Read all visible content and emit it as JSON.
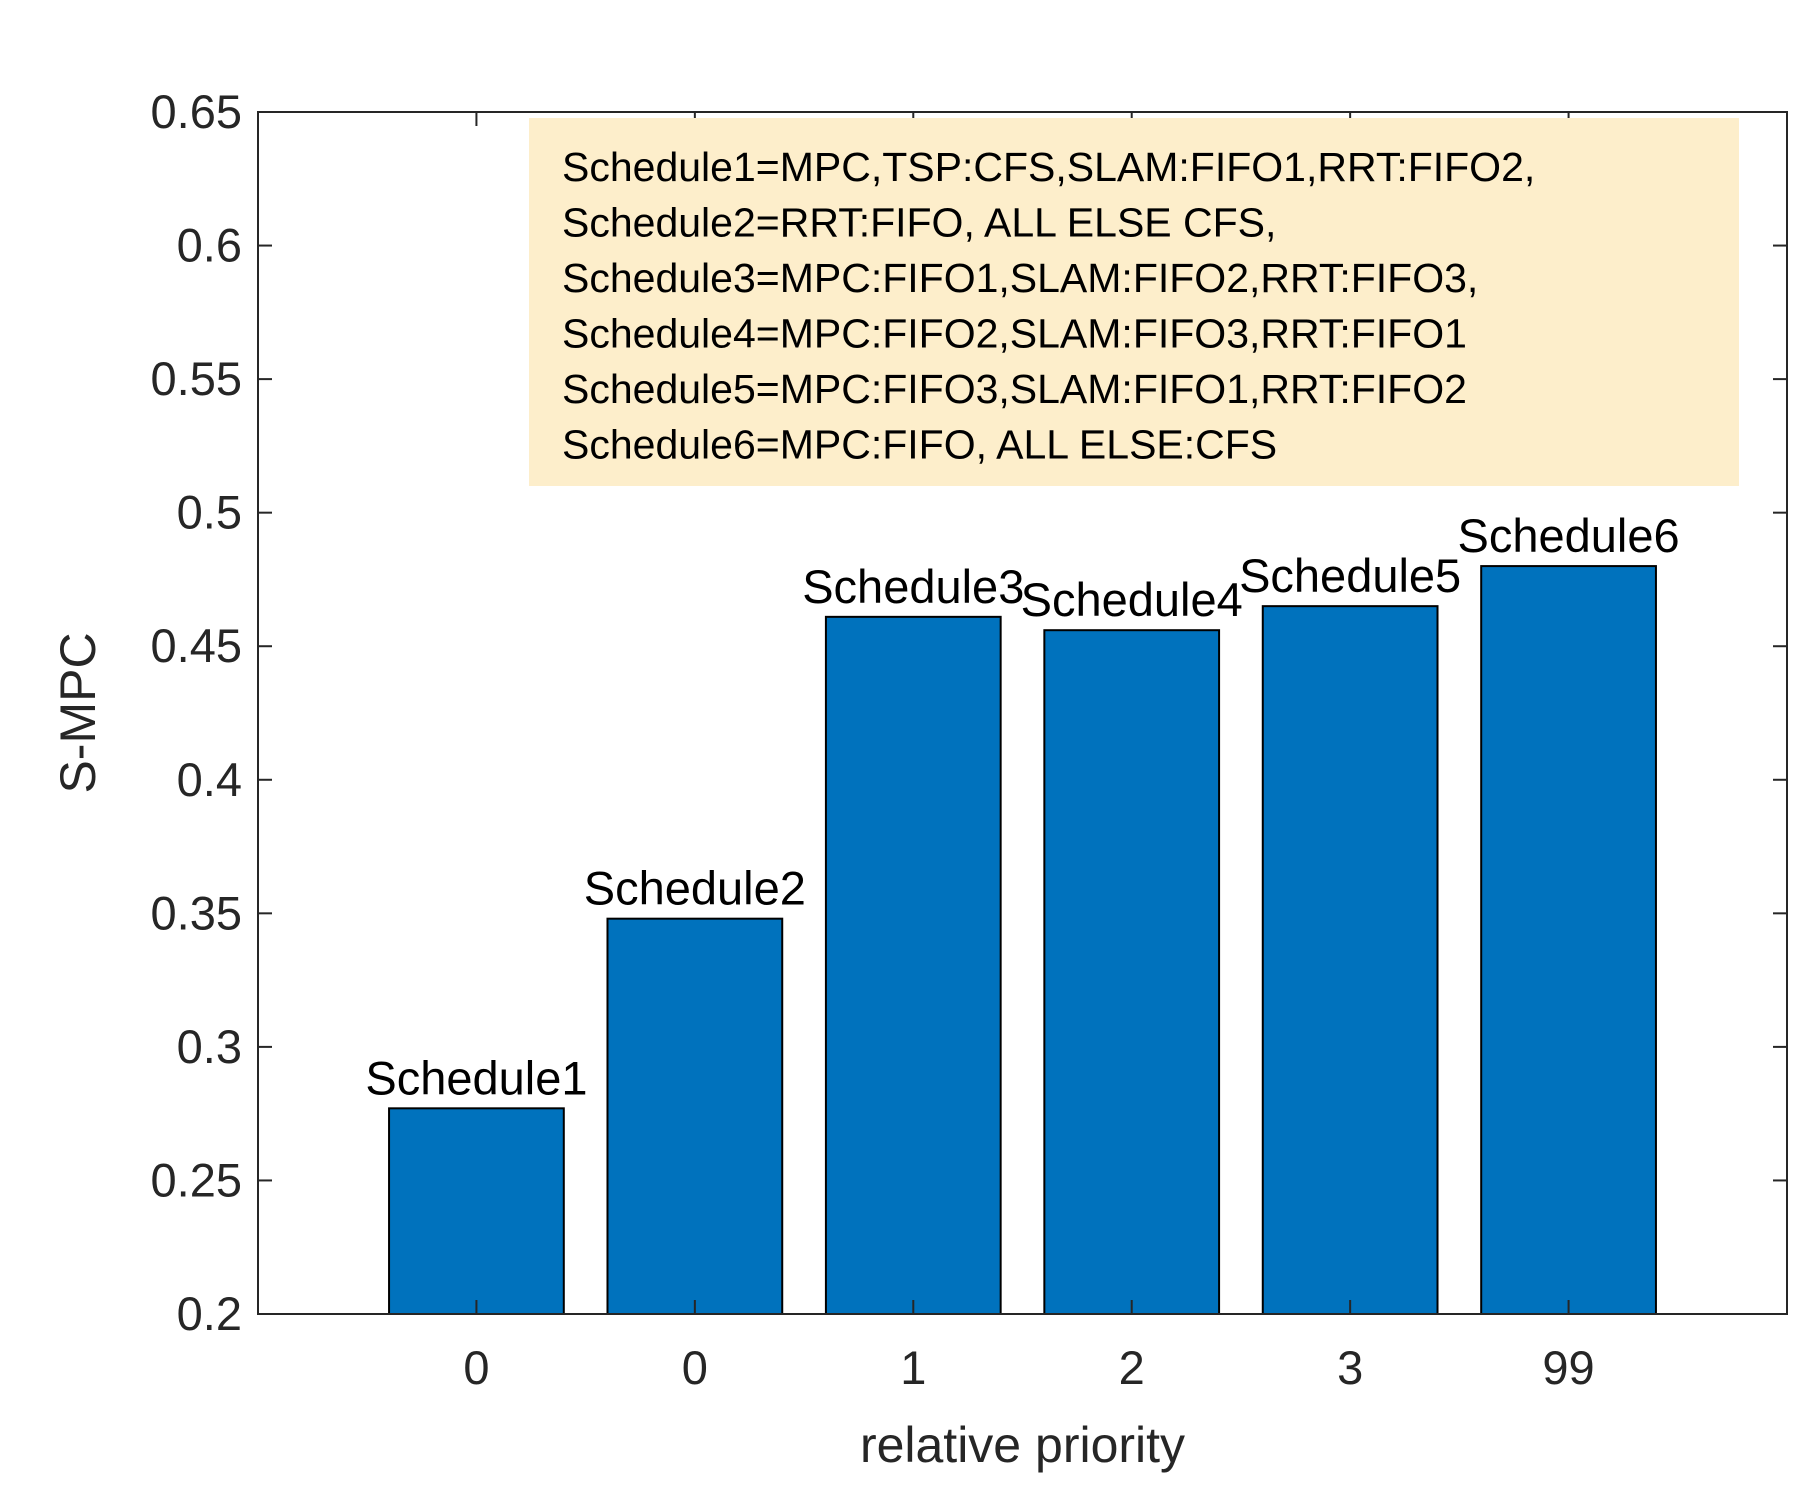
{
  "chart_data": {
    "type": "bar",
    "categories": [
      "0",
      "0",
      "1",
      "2",
      "3",
      "99"
    ],
    "values": [
      0.277,
      0.348,
      0.461,
      0.456,
      0.465,
      0.48
    ],
    "bar_labels": [
      "Schedule1",
      "Schedule2",
      "Schedule3",
      "Schedule4",
      "Schedule5",
      "Schedule6"
    ],
    "title": "",
    "xlabel": "relative priority",
    "ylabel": "S-MPC",
    "ylim": [
      0.2,
      0.65
    ],
    "yticks": [
      "0.2",
      "0.25",
      "0.3",
      "0.35",
      "0.4",
      "0.45",
      "0.5",
      "0.55",
      "0.6",
      "0.65"
    ],
    "grid": false,
    "legend_placement": "top-right",
    "annotation_lines": [
      "Schedule1=MPC,TSP:CFS,SLAM:FIFO1,RRT:FIFO2,",
      "Schedule2=RRT:FIFO, ALL ELSE CFS,",
      "Schedule3=MPC:FIFO1,SLAM:FIFO2,RRT:FIFO3,",
      "Schedule4=MPC:FIFO2,SLAM:FIFO3,RRT:FIFO1",
      "Schedule5=MPC:FIFO3,SLAM:FIFO1,RRT:FIFO2",
      "Schedule6=MPC:FIFO, ALL ELSE:CFS"
    ],
    "colors": {
      "bar": "#0072bd",
      "annotation_background": "#fdeecb",
      "axis": "#262626"
    }
  }
}
